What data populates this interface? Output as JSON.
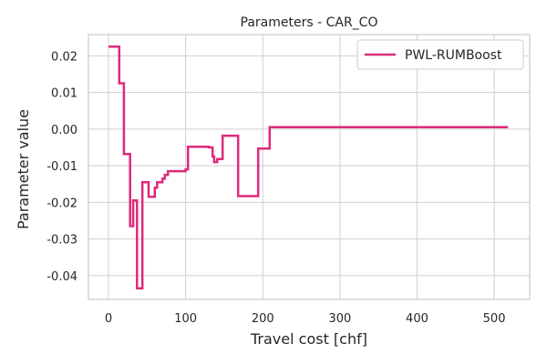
{
  "chart_data": {
    "type": "line",
    "title": "Parameters - CAR_CO",
    "xlabel": "Travel cost [chf]",
    "ylabel": "Parameter value",
    "xlim": [
      -26,
      546
    ],
    "ylim": [
      -0.0465,
      0.0258
    ],
    "xticks": [
      0,
      100,
      200,
      300,
      400,
      500
    ],
    "xtick_labels": [
      "0",
      "100",
      "200",
      "300",
      "400",
      "500"
    ],
    "yticks": [
      0.02,
      0.01,
      0.0,
      -0.01,
      -0.02,
      -0.03,
      -0.04
    ],
    "ytick_labels": [
      "0.02",
      "0.01",
      "0.00",
      "-0.01",
      "-0.02",
      "-0.03",
      "-0.04"
    ],
    "grid": true,
    "legend_position": "top-right",
    "series": [
      {
        "name": "PWL-RUMBoost",
        "color": "#dd2a7b",
        "step": true,
        "points": [
          [
            0,
            0.0225
          ],
          [
            14,
            0.0225
          ],
          [
            14,
            0.0125
          ],
          [
            20,
            0.0125
          ],
          [
            20,
            -0.0068
          ],
          [
            28,
            -0.0068
          ],
          [
            28,
            -0.0265
          ],
          [
            32,
            -0.0265
          ],
          [
            32,
            -0.0195
          ],
          [
            37,
            -0.0195
          ],
          [
            37,
            -0.0435
          ],
          [
            44,
            -0.0435
          ],
          [
            44,
            -0.0145
          ],
          [
            52,
            -0.0145
          ],
          [
            52,
            -0.0185
          ],
          [
            60,
            -0.0185
          ],
          [
            60,
            -0.016
          ],
          [
            63,
            -0.016
          ],
          [
            63,
            -0.0145
          ],
          [
            70,
            -0.0145
          ],
          [
            70,
            -0.0135
          ],
          [
            73,
            -0.0135
          ],
          [
            73,
            -0.0125
          ],
          [
            77,
            -0.0125
          ],
          [
            77,
            -0.0115
          ],
          [
            100,
            -0.0115
          ],
          [
            100,
            -0.011
          ],
          [
            103,
            -0.011
          ],
          [
            103,
            -0.0048
          ],
          [
            130,
            -0.0048
          ],
          [
            130,
            -0.005
          ],
          [
            135,
            -0.005
          ],
          [
            135,
            -0.0075
          ],
          [
            137,
            -0.0075
          ],
          [
            137,
            -0.009
          ],
          [
            141,
            -0.009
          ],
          [
            141,
            -0.0082
          ],
          [
            148,
            -0.0082
          ],
          [
            148,
            -0.0018
          ],
          [
            168,
            -0.0018
          ],
          [
            168,
            -0.0183
          ],
          [
            194,
            -0.0183
          ],
          [
            194,
            -0.0053
          ],
          [
            209,
            -0.0053
          ],
          [
            209,
            0.0005
          ],
          [
            518,
            0.0005
          ]
        ]
      }
    ]
  }
}
